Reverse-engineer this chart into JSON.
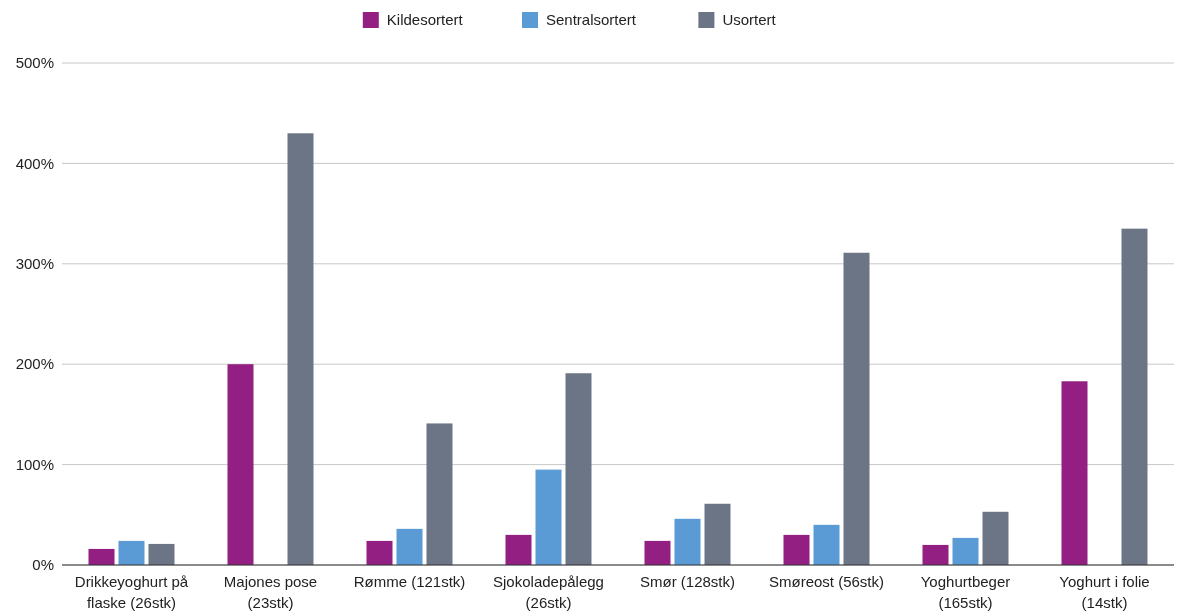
{
  "chart_data": {
    "type": "bar",
    "categories": [
      "Drikkeyoghurt på flaske (26stk)",
      "Majones pose (23stk)",
      "Rømme (121stk)",
      "Sjokoladepålegg (26stk)",
      "Smør (128stk)",
      "Smøreost (56stk)",
      "Yoghurtbeger (165stk)",
      "Yoghurt i folie (14stk)"
    ],
    "series": [
      {
        "name": "Kildesortert",
        "color": "#921f81",
        "values": [
          16,
          200,
          24,
          30,
          24,
          30,
          20,
          183
        ]
      },
      {
        "name": "Sentralsortert",
        "color": "#5b9bd5",
        "values": [
          24,
          null,
          36,
          95,
          46,
          40,
          27,
          null
        ]
      },
      {
        "name": "Usortert",
        "color": "#6b7586",
        "values": [
          21,
          430,
          141,
          191,
          61,
          311,
          53,
          335
        ]
      }
    ],
    "ylim": [
      0,
      500
    ],
    "yticks": [
      {
        "value": 0,
        "label": "0%"
      },
      {
        "value": 100,
        "label": "100%"
      },
      {
        "value": 200,
        "label": "200%"
      },
      {
        "value": 300,
        "label": "300%"
      },
      {
        "value": 400,
        "label": "400%"
      },
      {
        "value": 500,
        "label": "500%"
      }
    ],
    "grid": "y",
    "legend": "top"
  }
}
